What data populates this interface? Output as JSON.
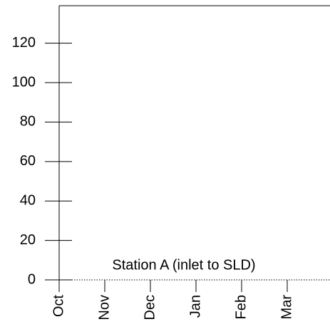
{
  "chart_data": {
    "type": "line",
    "annotation": "Station A (inlet to SLD)",
    "categories": [
      "Oct",
      "Nov",
      "Dec",
      "Jan",
      "Feb",
      "Mar"
    ],
    "series": [],
    "ylim": [
      0,
      139
    ],
    "yticks": [
      0,
      20,
      40,
      60,
      80,
      100,
      120
    ],
    "grid": false
  }
}
